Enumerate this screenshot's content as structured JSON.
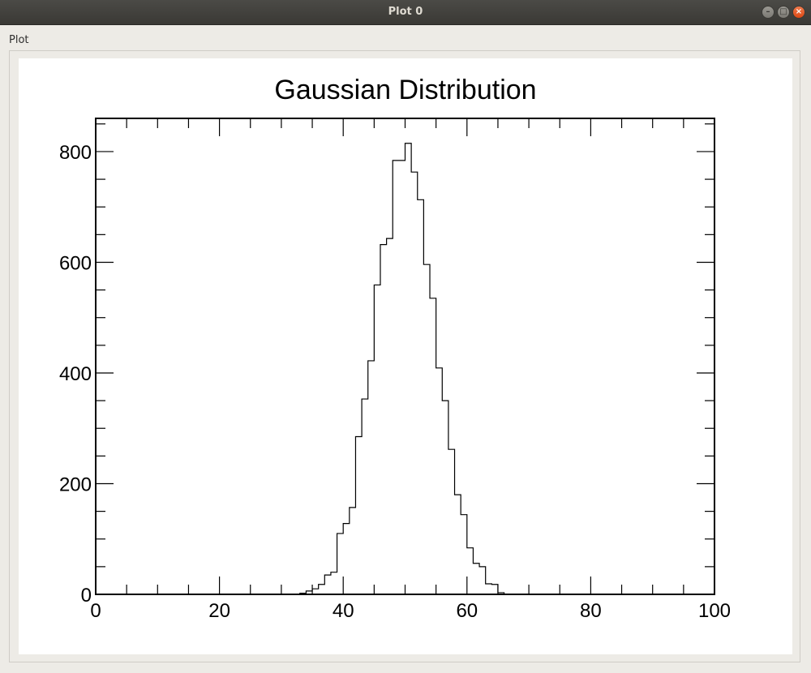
{
  "window": {
    "title": "Plot 0",
    "min_glyph": "–",
    "max_glyph": "□",
    "close_glyph": "×"
  },
  "group": {
    "label": "Plot"
  },
  "chart_data": {
    "type": "bar",
    "title": "Gaussian Distribution",
    "xlabel": "",
    "ylabel": "",
    "xlim": [
      0,
      100
    ],
    "ylim": [
      0,
      860
    ],
    "grid": false,
    "x_ticks": [
      0,
      20,
      40,
      60,
      80,
      100
    ],
    "y_ticks": [
      0,
      200,
      400,
      600,
      800
    ],
    "bin_width": 1,
    "bins_start": 33,
    "counts": [
      2,
      6,
      10,
      18,
      35,
      40,
      110,
      128,
      157,
      285,
      353,
      422,
      559,
      632,
      643,
      784,
      784,
      815,
      763,
      713,
      596,
      535,
      409,
      350,
      262,
      180,
      144,
      84,
      56,
      50,
      19,
      18,
      3
    ],
    "colors": {
      "line": "#000000",
      "background": "#ffffff"
    }
  }
}
